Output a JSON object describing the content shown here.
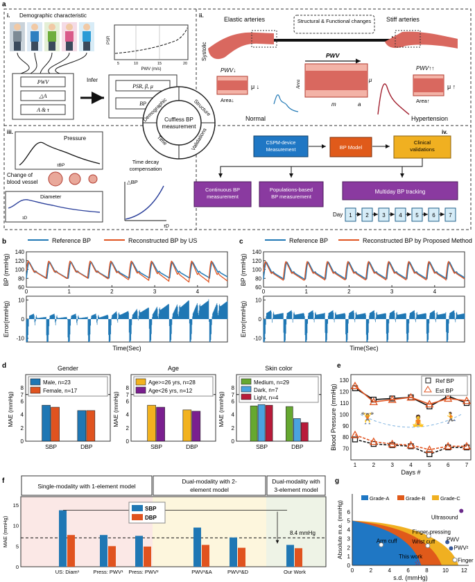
{
  "colors": {
    "blue": "#1f77b4",
    "orange": "#e0531f",
    "yellow": "#f2b21f",
    "purple": "#7a1f8f",
    "green": "#66a830",
    "lightblue": "#4aa3df",
    "darkred": "#b81b3a",
    "panel_a_blue": "#1f77c4",
    "panel_a_orange": "#e05a1a",
    "panel_a_yellow": "#f0b021",
    "panel_a_purple": "#8a3aa0",
    "artery": "#d9685f",
    "artery_light": "#f3b3a7"
  },
  "panel_labels": [
    "a",
    "b",
    "c",
    "d",
    "e",
    "f",
    "g"
  ],
  "panel_a": {
    "i": {
      "roman": "i.",
      "title": "Demographic characteristic",
      "boxes_left": [
        "PWV",
        "△A",
        "A & τ"
      ],
      "infer": "Infer",
      "boxes_right": [
        "PSR, β, μ",
        "BP"
      ],
      "mini_chart": {
        "ylabel": "PSR",
        "xlabel": "PWV (m/s)",
        "xticks": [
          "5",
          "10",
          "15",
          "20"
        ]
      }
    },
    "ii": {
      "roman": "ii.",
      "elastic": "Elastic arteries",
      "stiff": "Stiff arteries",
      "change": "Structural & Functional changes",
      "systolic": "Systolic",
      "pwv_down": "PWV↓",
      "pwv_upup": "PWV↑↑",
      "pwv": "PWV",
      "mu_down": "μ ↓",
      "mu_up": "μ ↑",
      "area_down": "Area↓",
      "area_up": "Area↑",
      "area": "Area",
      "mu": "μ",
      "m": "m",
      "a": "a",
      "normal": "Normal",
      "hypertension": "Hypertension"
    },
    "center": {
      "inner": "Cuffless BP measurement",
      "ring": [
        "Demographic",
        "Structure",
        "Time",
        "Validations"
      ]
    },
    "iii": {
      "roman": "iii.",
      "pressure": "Pressure",
      "tau_bp": "τBP",
      "change_vessel": "Change of blood vessel",
      "diameter": "Diameter",
      "tau_d": "τD",
      "time_decay": "Time decay compensation",
      "delta_bp": "△BP",
      "tau_d_axis": "τD"
    },
    "iv": {
      "roman": "iv.",
      "cspm": "CSPM-device Measurement",
      "bp_model": "BP Model",
      "clinical": "Clinical validations",
      "continuous": "Continuous BP measurement",
      "population": "Populations-based BP measurement",
      "multiday": "Multiday BP tracking",
      "day": "Day",
      "days": [
        "1",
        "2",
        "3",
        "4",
        "5",
        "6",
        "7"
      ]
    }
  },
  "panel_b": {
    "legend_ref": "Reference BP",
    "legend_rec": "Reconstructed BP by US",
    "ylabel_top": "BP (mmHg)",
    "ylabel_bottom": "Error(mmHg)",
    "xlabel": "Time(Sec)"
  },
  "panel_c": {
    "legend_ref": "Reference BP",
    "legend_rec": "Reconstructed BP by Proposed Method",
    "ylabel_top": "BP (mmHg)",
    "ylabel_bottom": "Error(mmHg)",
    "xlabel": "Time(Sec)"
  },
  "panel_d": {
    "ylabel": "MAE (mmHg)",
    "subtitles": [
      "Gender",
      "Age",
      "Skin color"
    ]
  },
  "panel_e": {
    "xlabel": "Days #",
    "ylabel": "Blood Pressure (mmHg)"
  },
  "panel_f": {
    "groups": [
      "Single-modality with 1-element model",
      "Dual-modality with 2-element model",
      "Dual-modality with 3-element model"
    ],
    "ylabel": "MAE (mmHg)",
    "annotation": "8.4 mmHg"
  },
  "panel_g": {
    "xlabel": "s.d. (mmHg)",
    "ylabel": "Absolute m.e. (mmHg)"
  },
  "chart_data": [
    {
      "id": "b",
      "type": "line",
      "xlabel": "Time(Sec)",
      "ylabel": "BP (mmHg)",
      "xlim": [
        0,
        4.7
      ],
      "ylim": [
        60,
        140
      ],
      "xticks": [
        0,
        1,
        2,
        3,
        4
      ],
      "yticks": [
        60,
        80,
        100,
        120,
        140
      ],
      "beats": [
        0,
        0.48,
        0.98,
        1.45,
        1.93,
        2.41,
        2.88,
        3.35,
        3.82,
        4.28
      ],
      "series": [
        {
          "name": "Reference BP",
          "systolic": 117,
          "diastolic": 80
        },
        {
          "name": "Reconstructed BP by US",
          "systolic": 119,
          "diastolic": 71
        }
      ],
      "error": {
        "ylabel": "Error(mmHg)",
        "ylim": [
          -12,
          12
        ],
        "yticks": [
          -10,
          0,
          10
        ]
      }
    },
    {
      "id": "c",
      "type": "line",
      "xlabel": "Time(Sec)",
      "ylabel": "BP (mmHg)",
      "xlim": [
        0,
        4.7
      ],
      "ylim": [
        60,
        140
      ],
      "xticks": [
        0,
        1,
        2,
        3,
        4
      ],
      "yticks": [
        60,
        80,
        100,
        120,
        140
      ],
      "beats": [
        0,
        0.48,
        0.98,
        1.45,
        1.93,
        2.41,
        2.88,
        3.35,
        3.82,
        4.28
      ],
      "series": [
        {
          "name": "Reference BP",
          "systolic": 117,
          "diastolic": 78
        },
        {
          "name": "Reconstructed BP by Proposed Method",
          "systolic": 118,
          "diastolic": 76
        }
      ],
      "error": {
        "ylabel": "Error(mmHg)",
        "ylim": [
          -12,
          12
        ],
        "yticks": [
          -10,
          0,
          10
        ]
      }
    },
    {
      "id": "d-gender",
      "type": "bar",
      "title": "Gender",
      "categories": [
        "SBP",
        "DBP"
      ],
      "ylim": [
        0,
        10
      ],
      "yticks": [
        0,
        2,
        4,
        6,
        7,
        8
      ],
      "reference_line": 7,
      "series": [
        {
          "name": "Male, n=23",
          "values": [
            5.4,
            4.6
          ],
          "color": "#1f77b4"
        },
        {
          "name": "Female, n=17",
          "values": [
            5.1,
            4.6
          ],
          "color": "#e0531f"
        }
      ]
    },
    {
      "id": "d-age",
      "type": "bar",
      "title": "Age",
      "categories": [
        "SBP",
        "DBP"
      ],
      "ylim": [
        0,
        10
      ],
      "yticks": [
        0,
        2,
        4,
        6,
        7,
        8
      ],
      "reference_line": 7,
      "series": [
        {
          "name": "Age>=26 yrs, n=28",
          "values": [
            5.4,
            4.7
          ],
          "color": "#f2b21f"
        },
        {
          "name": "Age<26 yrs, n=12",
          "values": [
            5.1,
            4.5
          ],
          "color": "#7a1f8f"
        }
      ]
    },
    {
      "id": "d-skin",
      "type": "bar",
      "title": "Skin color",
      "categories": [
        "SBP",
        "DBP"
      ],
      "ylim": [
        0,
        10
      ],
      "yticks": [
        0,
        2,
        4,
        6,
        7,
        8
      ],
      "reference_line": 7,
      "series": [
        {
          "name": "Medium, n=29",
          "values": [
            5.3,
            5.2
          ],
          "color": "#66a830"
        },
        {
          "name": "Dark, n=7",
          "values": [
            5.5,
            3.4
          ],
          "color": "#4aa3df"
        },
        {
          "name": "Light, n=4",
          "values": [
            5.4,
            2.8
          ],
          "color": "#b81b3a"
        }
      ]
    },
    {
      "id": "e",
      "type": "line",
      "xlabel": "Days #",
      "ylabel": "Blood Pressure (mmHg)",
      "x": [
        1,
        2,
        3,
        4,
        5,
        6,
        7
      ],
      "xlim": [
        1,
        7
      ],
      "ylim": [
        60,
        135
      ],
      "yticks": [
        70,
        80,
        90,
        100,
        110,
        120,
        130
      ],
      "series": [
        {
          "name": "Ref BP",
          "values": [
            123,
            113,
            114,
            115,
            107,
            116,
            110
          ]
        },
        {
          "name": "Est BP",
          "values": [
            125,
            111,
            113,
            115,
            109,
            114,
            112
          ]
        },
        {
          "name": "Ref BP",
          "values": [
            78,
            74,
            73,
            72,
            65,
            71,
            71
          ]
        },
        {
          "name": "Est BP",
          "values": [
            82,
            76,
            74,
            73,
            69,
            72,
            72
          ]
        }
      ]
    },
    {
      "id": "f",
      "type": "bar",
      "ylabel": "MAE (mmHg)",
      "categories": [
        "US: Diam¹",
        "Press: PWV¹",
        "Press: PWV²",
        "PWV²&A",
        "PWV²&D",
        "Our Work"
      ],
      "ylim": [
        0,
        17
      ],
      "yticks": [
        0,
        5,
        10,
        15
      ],
      "reference_line": 7,
      "series": [
        {
          "name": "SBP",
          "values": [
            13.7,
            7.7,
            7.5,
            9.5,
            7.1,
            5.3
          ]
        },
        {
          "name": "DBP",
          "values": [
            7.7,
            5.0,
            4.9,
            5.3,
            4.6,
            4.5
          ]
        }
      ]
    },
    {
      "id": "g",
      "type": "scatter",
      "xlabel": "s.d. (mmHg)",
      "ylabel": "Absolute m.e. (mmHg)",
      "xlim": [
        0,
        12.5
      ],
      "ylim": [
        0,
        8
      ],
      "xticks": [
        0,
        2,
        4,
        6,
        8,
        10,
        12
      ],
      "yticks": [
        0,
        1,
        2,
        3,
        4,
        5,
        6
      ],
      "regions": [
        "Grade-A",
        "Grade-B",
        "Grade-C"
      ],
      "points": [
        {
          "label": "Ultrasound",
          "x": 11.7,
          "y": 6.1
        },
        {
          "label": "Finger-pressing",
          "x": 8.2,
          "y": 3.3
        },
        {
          "label": "Arm cuff",
          "x": 3.1,
          "y": 2.3
        },
        {
          "label": "Wrist cuff",
          "x": 8.1,
          "y": 2.2
        },
        {
          "label": "PWV",
          "x": 10.2,
          "y": 2.6
        },
        {
          "label": "PWV²",
          "x": 10.6,
          "y": 1.9
        },
        {
          "label": "Finger cuff",
          "x": 11.0,
          "y": 0.6
        },
        {
          "label": "This work",
          "x": 7.0,
          "y": 0.3
        }
      ]
    }
  ]
}
